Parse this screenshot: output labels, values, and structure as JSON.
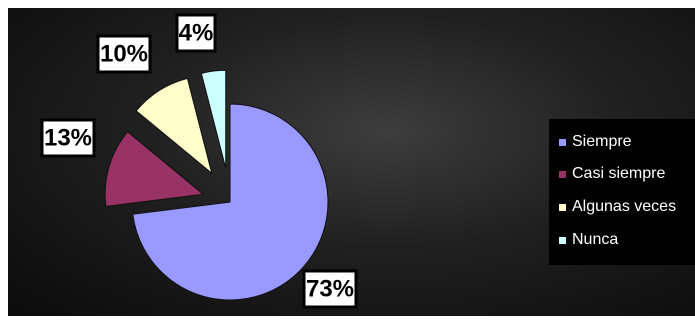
{
  "chart_data": {
    "type": "pie",
    "title": "",
    "categories": [
      "Siempre",
      "Casi siempre",
      "Algunas veces",
      "Nunca"
    ],
    "values": [
      73,
      13,
      10,
      4
    ],
    "labels": [
      "73%",
      "13%",
      "10%",
      "4%"
    ],
    "colors": [
      "#9999ff",
      "#993366",
      "#ffffcc",
      "#ccffff"
    ],
    "exploded": true,
    "legend_position": "right"
  }
}
